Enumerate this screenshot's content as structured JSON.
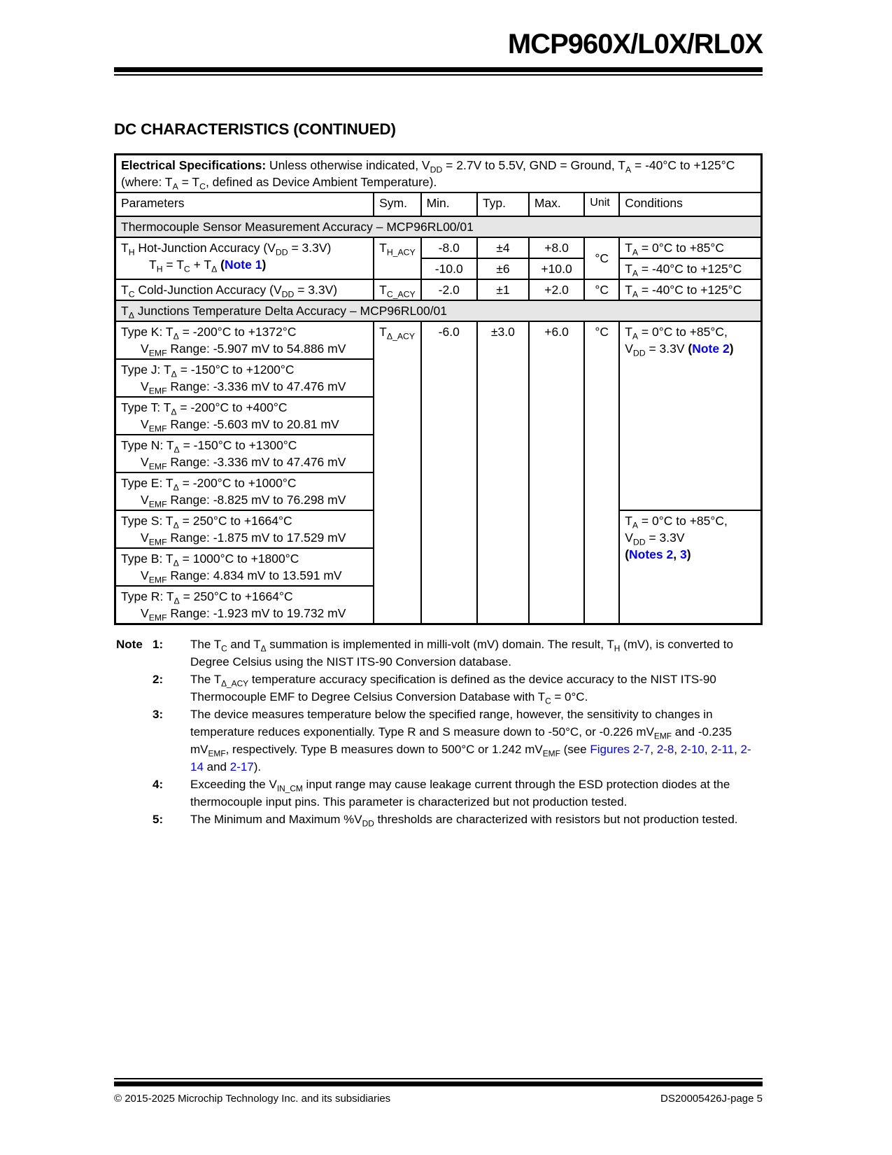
{
  "page": {
    "title": "MCP960X/L0X/RL0X",
    "dc_heading": "DC CHARACTERISTICS (CONTINUED)"
  },
  "table": {
    "spec_header": "*Electrical Specifications:* Unless otherwise indicated, V~DD~ = 2.7V to 5.5V, GND = Ground, T~A~ = -40°C to +125°C (where: T~A~ = T~C~, defined as Device Ambient Temperature).",
    "columns": [
      "Parameters",
      "Sym.",
      "Min.",
      "Typ.",
      "Max.",
      "Unit",
      "Conditions"
    ],
    "section1": "Thermocouple Sensor Measurement Accuracy – MCP96RL00/01",
    "th_row": {
      "p1": "T~H~ Hot-Junction Accuracy (V~DD~ = 3.3V)",
      "p2": "T~H~ = T~C~ + T~Δ~ *(*{Note 1}*)*",
      "sym": "T~H_ACY~",
      "unit": "°C",
      "r1": {
        "min": "-8.0",
        "typ": "±4",
        "max": "+8.0",
        "cond": "T~A~ = 0°C to +85°C"
      },
      "r2": {
        "min": "-10.0",
        "typ": "±6",
        "max": "+10.0",
        "cond": "T~A~ = -40°C to +125°C"
      }
    },
    "tc_row": {
      "p": "T~C~ Cold-Junction Accuracy (V~DD~ = 3.3V)",
      "sym": "T~C_ACY~",
      "min": "-2.0",
      "typ": "±1",
      "max": "+2.0",
      "unit": "°C",
      "cond": "T~A~ = -40°C to +125°C"
    },
    "section2": "T~Δ~ Junctions Temperature Delta Accuracy – MCP96RL00/01",
    "delta": {
      "sym": "T~Δ_ACY~",
      "min": "-6.0",
      "typ": "±3.0",
      "max": "+6.0",
      "unit": "°C",
      "cond1": {
        "l1": "T~A~ = 0°C to +85°C,",
        "l2": "V~DD~ = 3.3V *(*{Note 2}*)*"
      },
      "cond2": {
        "l1": "T~A~ = 0°C to +85°C,",
        "l2": "V~DD~ = 3.3V",
        "l3": "*(*{Notes 2}*, *{3}*)*"
      },
      "rows": [
        {
          "l1": "Type K: T~Δ~ = -200°C to +1372°C",
          "l2": "V~EMF~ Range: -5.907 mV to 54.886 mV"
        },
        {
          "l1": "Type J: T~Δ~ = -150°C to +1200°C",
          "l2": "V~EMF~ Range: -3.336 mV to 47.476 mV"
        },
        {
          "l1": "Type T: T~Δ~ = -200°C to +400°C",
          "l2": "V~EMF~ Range: -5.603 mV to 20.81 mV"
        },
        {
          "l1": "Type N: T~Δ~ = -150°C to +1300°C",
          "l2": "V~EMF~ Range: -3.336 mV to 47.476 mV"
        },
        {
          "l1": "Type E: T~Δ~ = -200°C to +1000°C",
          "l2": "V~EMF~ Range: -8.825 mV to 76.298 mV"
        },
        {
          "l1": "Type S: T~Δ~ = 250°C to +1664°C",
          "l2": "V~EMF~ Range: -1.875 mV to 17.529 mV"
        },
        {
          "l1": "Type B: T~Δ~ = 1000°C to +1800°C",
          "l2": "V~EMF~ Range: 4.834 mV to 13.591 mV"
        },
        {
          "l1": "Type R: T~Δ~ = 250°C to +1664°C",
          "l2": "V~EMF~ Range: -1.923 mV to 19.732 mV"
        }
      ]
    }
  },
  "notes_label": "Note",
  "notes": [
    {
      "num": "1:",
      "text": "The T~C~ and T~Δ~ summation is implemented in milli-volt (mV) domain. The result, T~H~ (mV), is converted to Degree Celsius using the NIST ITS-90 Conversion database."
    },
    {
      "num": "2:",
      "text": "The T~Δ_ACY~ temperature accuracy specification is defined as the device accuracy to the NIST ITS-90 Thermocouple EMF to Degree Celsius Conversion Database with T~C~ = 0°C."
    },
    {
      "num": "3:",
      "text": "The device measures temperature below the specified range, however, the sensitivity to changes in temperature reduces exponentially. Type R and S measure down to -50°C, or -0.226 mV~EMF~ and -0.235 mV~EMF~, respectively. Type B measures down to 500°C or 1.242 mV~EMF~ (see [Figures 2-7], [2-8], [2-10], [2-11], [2-14] and [2-17])."
    },
    {
      "num": "4:",
      "text": "Exceeding the V~IN_CM~ input range may cause leakage current through the ESD protection diodes at the thermocouple input pins. This parameter is characterized but not production tested."
    },
    {
      "num": "5:",
      "text": "The Minimum and Maximum %V~DD~ thresholds are characterized with resistors but not production tested."
    }
  ],
  "footer": {
    "left": "© 2015-2025 Microchip Technology Inc. and its subsidiaries",
    "right": "DS20005426J-page 5"
  },
  "colors": {
    "link": "#0000ee",
    "section_bg": "#e6e6e6",
    "ink": "#000000"
  }
}
